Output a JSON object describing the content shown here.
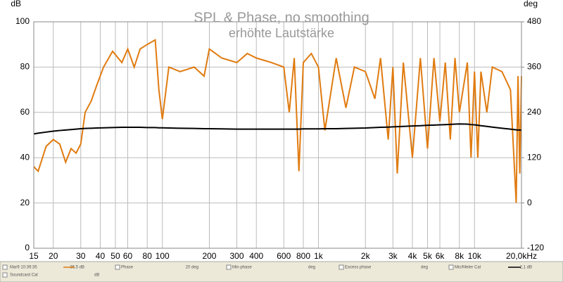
{
  "chart_data": {
    "type": "line",
    "title": "SPL & Phase, no smoothing",
    "subtitle": "erhöhte Lautstärke",
    "y_label": "dB",
    "y2_label": "deg",
    "log_x": true,
    "grid": true,
    "xlim": [
      15,
      20000
    ],
    "xticks": [
      15,
      20,
      30,
      40,
      50,
      60,
      80,
      100,
      200,
      300,
      400,
      600,
      800,
      {
        "value": 1000,
        "label": "1k"
      },
      {
        "value": 2000,
        "label": "2k"
      },
      {
        "value": 3000,
        "label": "3k"
      },
      {
        "value": 4000,
        "label": "4k"
      },
      {
        "value": 5000,
        "label": "5k"
      },
      {
        "value": 6000,
        "label": "6k"
      },
      {
        "value": 8000,
        "label": "8k"
      },
      {
        "value": 10000,
        "label": "10k"
      },
      {
        "value": 20000,
        "label": "20,0kHz"
      }
    ],
    "ylim": [
      0,
      100
    ],
    "yticks": [
      0,
      20,
      40,
      60,
      80,
      100
    ],
    "y2lim": [
      -120,
      480
    ],
    "y2ticks": [
      -120,
      0,
      120,
      240,
      360,
      480
    ],
    "x": [
      15,
      16,
      18,
      20,
      22,
      24,
      26,
      28,
      30,
      32,
      35,
      38,
      42,
      48,
      55,
      60,
      66,
      72,
      80,
      90,
      95,
      100,
      110,
      130,
      160,
      185,
      200,
      240,
      300,
      350,
      400,
      500,
      600,
      650,
      700,
      750,
      800,
      900,
      1000,
      1100,
      1300,
      1500,
      1700,
      2000,
      2300,
      2500,
      2800,
      3000,
      3200,
      3500,
      4000,
      4500,
      5000,
      5500,
      6000,
      6500,
      7000,
      7500,
      8000,
      9000,
      9500,
      10000,
      10500,
      11000,
      12000,
      13000,
      15000,
      17000,
      18500,
      19000,
      19500,
      20000
    ],
    "series": [
      {
        "name": "Mar9 10:39:35",
        "color": "#e07b10",
        "values": [
          36,
          34,
          45,
          48,
          46,
          38,
          44,
          42,
          46,
          60,
          65,
          72,
          80,
          87,
          82,
          88,
          80,
          88,
          90,
          92,
          70,
          57,
          80,
          78,
          80,
          76,
          88,
          84,
          82,
          86,
          84,
          82,
          80,
          60,
          84,
          34,
          82,
          86,
          80,
          52,
          84,
          62,
          80,
          78,
          66,
          84,
          48,
          80,
          33,
          82,
          40,
          84,
          44,
          84,
          56,
          82,
          48,
          84,
          60,
          82,
          40,
          78,
          40,
          78,
          60,
          80,
          78,
          70,
          20,
          76,
          33,
          76
        ]
      },
      {
        "name": "Mic/Meter Cal",
        "color": "#000000",
        "values": [
          50.5,
          50.8,
          51.3,
          51.7,
          52,
          52.2,
          52.4,
          52.6,
          52.8,
          52.9,
          53,
          53.1,
          53.2,
          53.3,
          53.4,
          53.4,
          53.4,
          53.4,
          53.3,
          53.3,
          53.2,
          53.2,
          53.1,
          53,
          52.9,
          52.8,
          52.8,
          52.7,
          52.6,
          52.6,
          52.6,
          52.6,
          52.6,
          52.6,
          52.6,
          52.6,
          52.7,
          52.7,
          52.7,
          52.8,
          52.8,
          52.9,
          53,
          53.1,
          53.3,
          53.4,
          53.5,
          53.6,
          53.7,
          53.8,
          54,
          54.1,
          54.3,
          54.4,
          54.5,
          54.6,
          54.7,
          54.8,
          54.9,
          54.8,
          54.6,
          54.5,
          54.3,
          54.1,
          53.8,
          53.5,
          53,
          52.6,
          52.3,
          52.2,
          52.2,
          52.1
        ]
      }
    ]
  },
  "status_bar": {
    "row1": [
      "Mar9 10:39:35",
      "36,5 dB",
      "Phase",
      "20 deg",
      "Min phase",
      "deg",
      "Excess phase",
      "deg",
      "Mic/Meter Cal",
      "-2,1 dB"
    ],
    "row2": [
      "Soundcard Cal",
      "dB"
    ]
  }
}
